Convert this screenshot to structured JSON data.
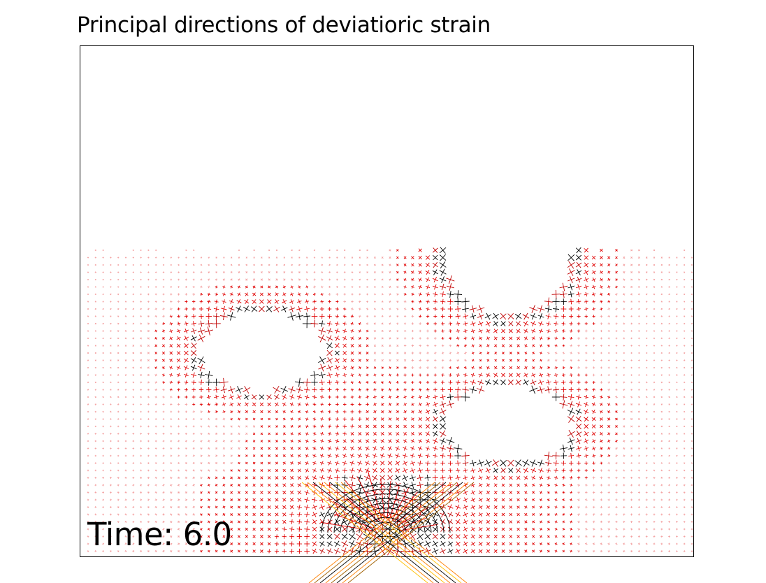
{
  "title": "Principal directions of deviatioric strain",
  "time_label": "Time: 6.0",
  "colors": {
    "frame": "#000000",
    "glyph_high": "#000000",
    "glyph_mid": "#ff0000",
    "glyph_low": "#ffd700",
    "background": "#ffffff"
  }
}
